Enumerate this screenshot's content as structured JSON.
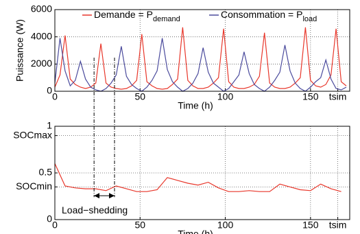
{
  "chart_data": [
    {
      "type": "line",
      "y_label": "Puissance (W)",
      "x_label": "Time (h)",
      "xlim": [
        0,
        173
      ],
      "ylim": [
        0,
        6000
      ],
      "xticks": [
        0,
        50,
        100,
        150,
        {
          "value": 166,
          "label": "tsim"
        }
      ],
      "yticks": [
        0,
        2000,
        4000,
        6000
      ],
      "grid": true,
      "x": [
        0,
        3,
        6,
        9,
        12,
        15,
        18,
        21,
        24,
        27,
        30,
        33,
        36,
        39,
        42,
        45,
        48,
        51,
        54,
        57,
        60,
        63,
        66,
        69,
        72,
        75,
        78,
        81,
        84,
        87,
        90,
        93,
        96,
        99,
        102,
        105,
        108,
        111,
        114,
        117,
        120,
        123,
        126,
        129,
        132,
        135,
        138,
        141,
        144,
        147,
        150,
        153,
        156,
        159,
        162,
        165,
        168,
        171
      ],
      "series": [
        {
          "name": "Demande = P",
          "subscript": "demand",
          "color": "#e8362a",
          "values": [
            300,
            1200,
            4100,
            900,
            500,
            300,
            200,
            300,
            600,
            3500,
            600,
            300,
            200,
            150,
            200,
            400,
            800,
            4200,
            700,
            400,
            200,
            150,
            200,
            500,
            900,
            4700,
            800,
            400,
            200,
            200,
            300,
            600,
            1000,
            4600,
            700,
            300,
            200,
            200,
            300,
            500,
            1100,
            4300,
            600,
            300,
            200,
            200,
            300,
            600,
            1000,
            4700,
            800,
            400,
            300,
            500,
            1200,
            4600,
            700,
            400
          ]
        },
        {
          "name": "Consommation = P",
          "subscript": "load",
          "color": "#4a4a9c",
          "values": [
            600,
            3900,
            1500,
            400,
            800,
            2200,
            900,
            300,
            100,
            0,
            200,
            600,
            1200,
            3300,
            1100,
            500,
            200,
            0,
            300,
            800,
            1500,
            3900,
            1600,
            700,
            300,
            0,
            200,
            600,
            1300,
            3200,
            1400,
            600,
            300,
            0,
            200,
            700,
            1200,
            2900,
            1300,
            500,
            200,
            0,
            300,
            800,
            1400,
            3400,
            1500,
            600,
            200,
            0,
            300,
            700,
            1000,
            2300,
            900,
            200,
            100,
            300
          ]
        }
      ]
    },
    {
      "type": "line",
      "x_label": "Time (h)",
      "xlim": [
        0,
        173
      ],
      "ylim": [
        0,
        1
      ],
      "xticks": [
        0,
        50,
        100,
        150,
        {
          "value": 166,
          "label": "tsim"
        }
      ],
      "yticks": [
        0,
        {
          "value": 0.35,
          "label": "SOCmin"
        },
        0.5,
        {
          "value": 0.9,
          "label": "SOCmax"
        },
        1
      ],
      "grid": true,
      "x": [
        0,
        6,
        12,
        18,
        24,
        30,
        36,
        42,
        48,
        54,
        60,
        66,
        72,
        78,
        84,
        90,
        96,
        102,
        108,
        114,
        120,
        126,
        132,
        138,
        144,
        150,
        156,
        162,
        168
      ],
      "series": [
        {
          "color": "#e8362a",
          "values": [
            0.6,
            0.36,
            0.34,
            0.33,
            0.33,
            0.31,
            0.36,
            0.33,
            0.3,
            0.3,
            0.32,
            0.45,
            0.42,
            0.39,
            0.37,
            0.4,
            0.34,
            0.3,
            0.3,
            0.31,
            0.3,
            0.3,
            0.38,
            0.35,
            0.32,
            0.31,
            0.38,
            0.33,
            0.3
          ]
        }
      ],
      "annotation": {
        "text": "Load−shedding",
        "x_start": 23,
        "x_end": 35
      }
    }
  ]
}
